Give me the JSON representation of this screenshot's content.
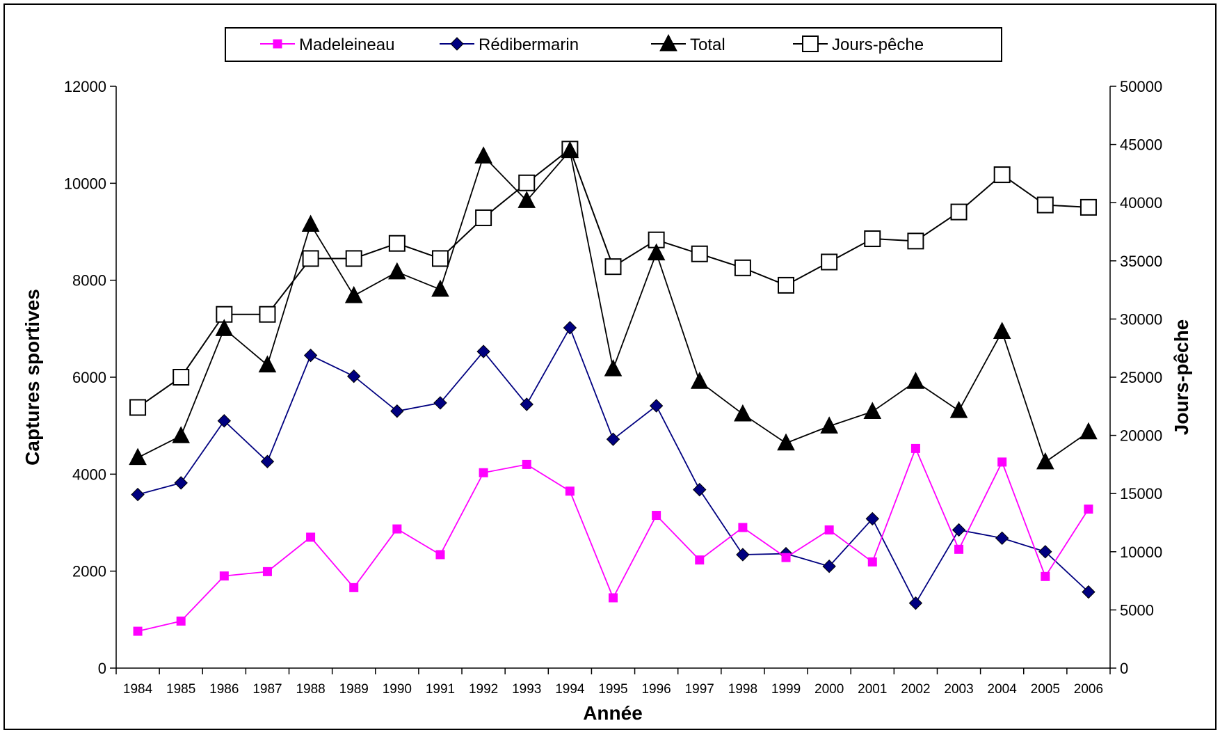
{
  "chart_data": {
    "type": "line",
    "xlabel": "Année",
    "ylabel": "Captures sportives",
    "y2label": "Jours-pêche",
    "ylim": [
      0,
      12000
    ],
    "y2lim": [
      0,
      50000
    ],
    "yticks": [
      "0",
      "2000",
      "4000",
      "6000",
      "8000",
      "10000",
      "12000"
    ],
    "y2ticks": [
      "0",
      "5000",
      "10000",
      "15000",
      "20000",
      "25000",
      "30000",
      "35000",
      "40000",
      "45000",
      "50000"
    ],
    "grid": false,
    "legend_position": "top",
    "categories": [
      "1984",
      "1985",
      "1986",
      "1987",
      "1988",
      "1989",
      "1990",
      "1991",
      "1992",
      "1993",
      "1994",
      "1995",
      "1996",
      "1997",
      "1998",
      "1999",
      "2000",
      "2001",
      "2002",
      "2003",
      "2004",
      "2005",
      "2006"
    ],
    "series": [
      {
        "name": "Madeleineau",
        "axis": "left",
        "color": "#FF00FF",
        "marker": "square-filled",
        "values": [
          760,
          970,
          1900,
          1990,
          2700,
          1660,
          2870,
          2340,
          4030,
          4200,
          3650,
          1450,
          3150,
          2230,
          2900,
          2280,
          2850,
          2190,
          4530,
          2450,
          4250,
          1890,
          3280
        ]
      },
      {
        "name": "Rédibermarin",
        "axis": "left",
        "color": "#000080",
        "marker": "diamond-filled",
        "values": [
          3580,
          3820,
          5100,
          4260,
          6450,
          6020,
          5300,
          5470,
          6530,
          5440,
          7020,
          4720,
          5410,
          3680,
          2340,
          2360,
          2100,
          3080,
          1340,
          2850,
          2680,
          2400,
          1570
        ]
      },
      {
        "name": "Total",
        "axis": "left",
        "color": "#000000",
        "marker": "triangle-filled",
        "values": [
          4340,
          4790,
          7000,
          6250,
          9150,
          7680,
          8170,
          7810,
          10560,
          9640,
          10670,
          6170,
          8560,
          5910,
          5240,
          4640,
          4990,
          5290,
          5910,
          5310,
          6940,
          4250,
          4870
        ]
      },
      {
        "name": "Jours-pêche",
        "axis": "right",
        "color": "#000000",
        "marker": "square-open",
        "values": [
          22400,
          25000,
          30400,
          30400,
          35200,
          35200,
          36500,
          35200,
          38700,
          41700,
          44600,
          34500,
          36800,
          35600,
          34400,
          32900,
          34900,
          36900,
          36700,
          39200,
          42400,
          39800,
          39600
        ]
      }
    ]
  }
}
